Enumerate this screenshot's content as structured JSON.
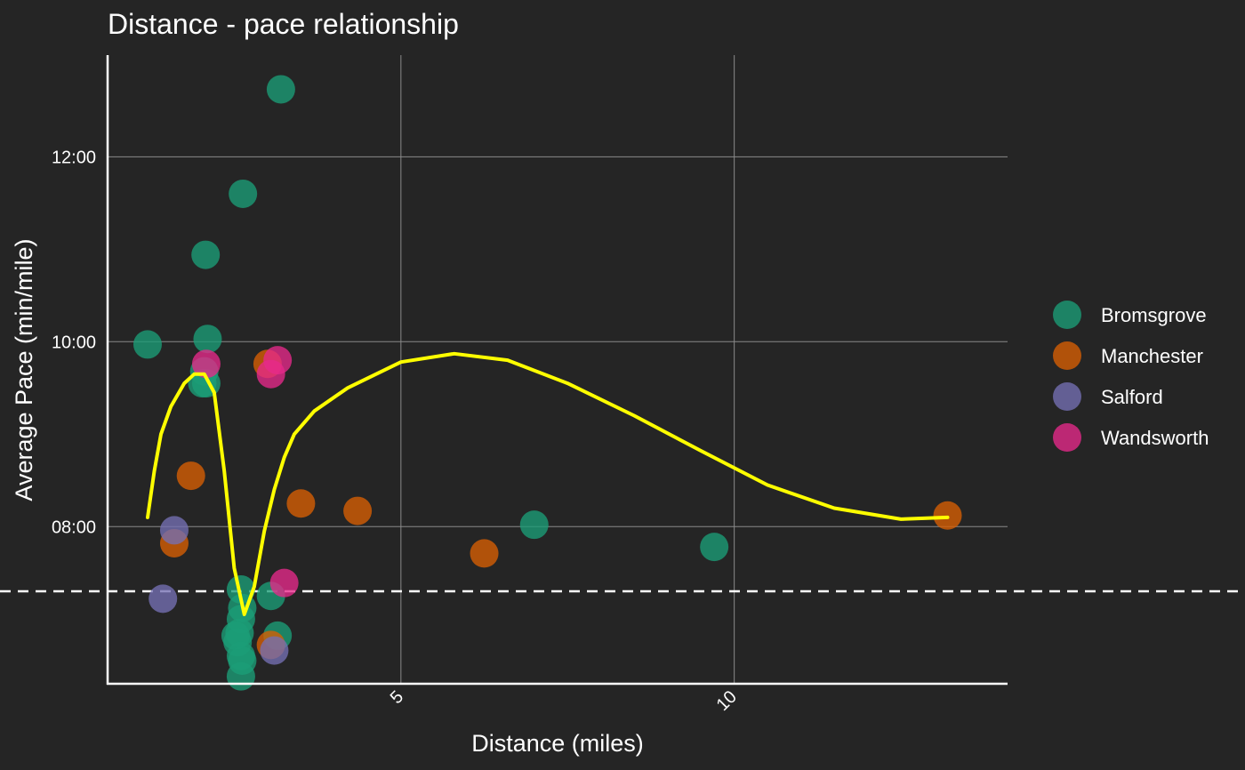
{
  "chart_data": {
    "type": "scatter",
    "title": "Distance - pace relationship",
    "xlabel": "Distance (miles)",
    "ylabel": "Average Pace (min/mile)",
    "xlim": [
      0.6,
      14.1
    ],
    "ylim": [
      6.3,
      13.1
    ],
    "x_ticks": [
      {
        "value": 5,
        "label": "5"
      },
      {
        "value": 10,
        "label": "10"
      }
    ],
    "y_ticks": [
      {
        "value": 8,
        "label": "08:00"
      },
      {
        "value": 10,
        "label": "10:00"
      },
      {
        "value": 12,
        "label": "12:00"
      }
    ],
    "grid": true,
    "legend_position": "right",
    "reference_line": {
      "y": 7.3,
      "style": "dashed",
      "color": "#ffffff"
    },
    "smooth_line": {
      "color": "#ffff00",
      "points": [
        [
          1.2,
          8.1
        ],
        [
          1.3,
          8.6
        ],
        [
          1.4,
          9.0
        ],
        [
          1.55,
          9.3
        ],
        [
          1.75,
          9.55
        ],
        [
          1.9,
          9.65
        ],
        [
          2.05,
          9.65
        ],
        [
          2.2,
          9.45
        ],
        [
          2.35,
          8.6
        ],
        [
          2.5,
          7.55
        ],
        [
          2.65,
          7.05
        ],
        [
          2.8,
          7.35
        ],
        [
          2.95,
          7.95
        ],
        [
          3.1,
          8.4
        ],
        [
          3.25,
          8.75
        ],
        [
          3.4,
          9.0
        ],
        [
          3.7,
          9.25
        ],
        [
          4.2,
          9.5
        ],
        [
          5.0,
          9.78
        ],
        [
          5.8,
          9.87
        ],
        [
          6.6,
          9.8
        ],
        [
          7.5,
          9.55
        ],
        [
          8.5,
          9.2
        ],
        [
          9.5,
          8.82
        ],
        [
          10.5,
          8.45
        ],
        [
          11.5,
          8.2
        ],
        [
          12.5,
          8.08
        ],
        [
          13.2,
          8.1
        ]
      ]
    },
    "series": [
      {
        "name": "Bromsgrove",
        "color": "#1b9e77",
        "points": [
          [
            3.2,
            12.73
          ],
          [
            2.63,
            11.6
          ],
          [
            2.07,
            10.94
          ],
          [
            1.2,
            9.97
          ],
          [
            2.1,
            10.03
          ],
          [
            2.05,
            9.68
          ],
          [
            2.08,
            9.55
          ],
          [
            2.02,
            9.55
          ],
          [
            2.6,
            7.32
          ],
          [
            3.05,
            7.25
          ],
          [
            2.62,
            7.12
          ],
          [
            2.6,
            7.0
          ],
          [
            2.58,
            6.85
          ],
          [
            2.55,
            6.75
          ],
          [
            2.6,
            6.6
          ],
          [
            2.62,
            6.55
          ],
          [
            2.6,
            6.38
          ],
          [
            2.52,
            6.82
          ],
          [
            3.15,
            6.82
          ],
          [
            7.0,
            8.02
          ],
          [
            9.7,
            7.78
          ]
        ]
      },
      {
        "name": "Manchester",
        "color": "#d95f02",
        "points": [
          [
            1.85,
            8.55
          ],
          [
            1.6,
            7.82
          ],
          [
            3.5,
            8.25
          ],
          [
            4.35,
            8.17
          ],
          [
            6.25,
            7.71
          ],
          [
            3.05,
            6.72
          ],
          [
            3.0,
            9.76
          ],
          [
            13.2,
            8.12
          ]
        ]
      },
      {
        "name": "Salford",
        "color": "#7570b3",
        "points": [
          [
            1.6,
            7.96
          ],
          [
            1.43,
            7.22
          ],
          [
            3.1,
            6.66
          ]
        ]
      },
      {
        "name": "Wandsworth",
        "color": "#e7298a",
        "points": [
          [
            2.08,
            9.76
          ],
          [
            3.15,
            9.8
          ],
          [
            3.05,
            9.65
          ],
          [
            3.25,
            7.39
          ]
        ]
      }
    ]
  }
}
